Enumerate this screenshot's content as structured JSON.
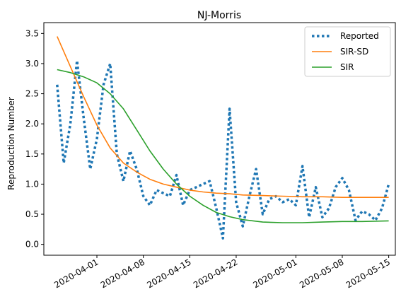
{
  "chart_data": {
    "type": "line",
    "title": "NJ-Morris",
    "xlabel": "",
    "ylabel": "Reproduction Number",
    "x_ticks": [
      "2020-04-01",
      "2020-04-08",
      "2020-04-15",
      "2020-04-22",
      "2020-05-01",
      "2020-05-08",
      "2020-05-15"
    ],
    "y_ticks": [
      "0.0",
      "0.5",
      "1.0",
      "1.5",
      "2.0",
      "2.5",
      "3.0",
      "3.5"
    ],
    "ylim": [
      -0.18,
      3.68
    ],
    "xlim": [
      "2020-03-24",
      "2020-05-16"
    ],
    "grid": false,
    "legend_position": "top-right",
    "series": [
      {
        "name": "Reported",
        "style": "dotted",
        "color": "#1f77b4",
        "x": [
          "2020-03-26",
          "2020-03-27",
          "2020-03-28",
          "2020-03-29",
          "2020-03-30",
          "2020-03-31",
          "2020-04-01",
          "2020-04-02",
          "2020-04-03",
          "2020-04-04",
          "2020-04-05",
          "2020-04-06",
          "2020-04-07",
          "2020-04-08",
          "2020-04-09",
          "2020-04-10",
          "2020-04-11",
          "2020-04-12",
          "2020-04-13",
          "2020-04-14",
          "2020-04-15",
          "2020-04-16",
          "2020-04-17",
          "2020-04-18",
          "2020-04-19",
          "2020-04-20",
          "2020-04-21",
          "2020-04-22",
          "2020-04-23",
          "2020-04-24",
          "2020-04-25",
          "2020-04-26",
          "2020-04-27",
          "2020-04-28",
          "2020-04-29",
          "2020-04-30",
          "2020-05-01",
          "2020-05-02",
          "2020-05-03",
          "2020-05-04",
          "2020-05-05",
          "2020-05-06",
          "2020-05-07",
          "2020-05-08",
          "2020-05-09",
          "2020-05-10",
          "2020-05-11",
          "2020-05-12",
          "2020-05-13",
          "2020-05-14",
          "2020-05-15"
        ],
        "values": [
          2.65,
          1.35,
          2.0,
          3.05,
          2.1,
          1.25,
          1.75,
          2.65,
          3.0,
          1.5,
          1.05,
          1.55,
          1.25,
          0.8,
          0.65,
          0.9,
          0.85,
          0.8,
          1.15,
          0.65,
          0.9,
          0.95,
          1.0,
          1.05,
          0.6,
          0.1,
          2.25,
          0.7,
          0.3,
          0.8,
          1.25,
          0.5,
          0.75,
          0.8,
          0.7,
          0.75,
          0.65,
          1.3,
          0.45,
          0.95,
          0.45,
          0.6,
          0.95,
          1.1,
          0.9,
          0.4,
          0.55,
          0.5,
          0.4,
          0.6,
          1.0
        ]
      },
      {
        "name": "SIR-SD",
        "style": "solid",
        "color": "#ff7f0e",
        "x": [
          "2020-03-26",
          "2020-03-28",
          "2020-03-30",
          "2020-04-01",
          "2020-04-03",
          "2020-04-05",
          "2020-04-07",
          "2020-04-09",
          "2020-04-11",
          "2020-04-13",
          "2020-04-15",
          "2020-04-17",
          "2020-04-19",
          "2020-04-21",
          "2020-04-23",
          "2020-04-26",
          "2020-04-29",
          "2020-05-02",
          "2020-05-05",
          "2020-05-08",
          "2020-05-11",
          "2020-05-15"
        ],
        "values": [
          3.45,
          2.95,
          2.45,
          1.98,
          1.6,
          1.35,
          1.2,
          1.08,
          1.0,
          0.95,
          0.9,
          0.87,
          0.85,
          0.84,
          0.82,
          0.81,
          0.8,
          0.79,
          0.79,
          0.78,
          0.78,
          0.78
        ]
      },
      {
        "name": "SIR",
        "style": "solid",
        "color": "#2ca02c",
        "x": [
          "2020-03-26",
          "2020-03-28",
          "2020-03-30",
          "2020-04-01",
          "2020-04-03",
          "2020-04-05",
          "2020-04-07",
          "2020-04-09",
          "2020-04-11",
          "2020-04-13",
          "2020-04-15",
          "2020-04-17",
          "2020-04-19",
          "2020-04-21",
          "2020-04-23",
          "2020-04-26",
          "2020-04-29",
          "2020-05-02",
          "2020-05-05",
          "2020-05-08",
          "2020-05-11",
          "2020-05-15"
        ],
        "values": [
          2.9,
          2.85,
          2.78,
          2.68,
          2.5,
          2.25,
          1.9,
          1.55,
          1.25,
          1.0,
          0.8,
          0.65,
          0.53,
          0.46,
          0.41,
          0.37,
          0.36,
          0.36,
          0.37,
          0.38,
          0.38,
          0.39
        ]
      }
    ]
  }
}
